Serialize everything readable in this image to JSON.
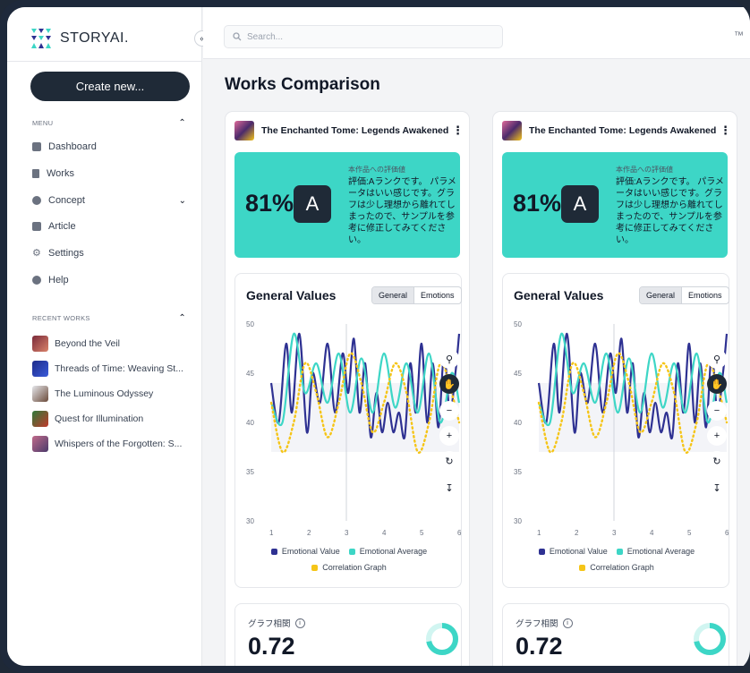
{
  "brand": {
    "name_prefix": "STORY",
    "name_suffix": "AI."
  },
  "sidebar": {
    "create_label": "Create new...",
    "menu_heading": "MENU",
    "items": [
      {
        "label": "Dashboard",
        "icon": "dashboard-icon"
      },
      {
        "label": "Works",
        "icon": "document-icon"
      },
      {
        "label": "Concept",
        "icon": "concept-icon"
      },
      {
        "label": "Article",
        "icon": "article-icon"
      },
      {
        "label": "Settings",
        "icon": "gear-icon"
      },
      {
        "label": "Help",
        "icon": "help-icon"
      }
    ],
    "recent_heading": "RECENT WORKS",
    "recent": [
      {
        "label": "Beyond the Veil"
      },
      {
        "label": "Threads of Time: Weaving St..."
      },
      {
        "label": "The Luminous Odyssey"
      },
      {
        "label": "Quest for Illumination"
      },
      {
        "label": "Whispers of the Forgotten: S..."
      }
    ]
  },
  "search": {
    "placeholder": "Search..."
  },
  "page": {
    "title": "Works Comparison"
  },
  "cards": [
    {
      "title": "The Enchanted Tome: Legends Awakened",
      "score_pct": "81%",
      "grade": "A",
      "eval_label": "本作品への評価値",
      "eval_text": "評価:Aランクです。 パラメータはいい感じです。グラフは少し理想から離れてしまったので、サンプルを参考に修正してみてください。",
      "chart_title": "General Values",
      "tab_general": "General",
      "tab_emotions": "Emotions",
      "corr_label": "グラフ相関",
      "corr_value": "0.72"
    },
    {
      "title": "The Enchanted Tome: Legends Awakened",
      "score_pct": "81%",
      "grade": "A",
      "eval_label": "本作品への評価値",
      "eval_text": "評価:Aランクです。 パラメータはいい感じです。グラフは少し理想から離れてしまったので、サンプルを参考に修正してみてください。",
      "chart_title": "General Values",
      "tab_general": "General",
      "tab_emotions": "Emotions",
      "corr_label": "グラフ相関",
      "corr_value": "0.72"
    }
  ],
  "colors": {
    "accent": "#3dd6c6",
    "dark": "#1f2a37",
    "emotional": "#2e3192",
    "average": "#3dd6c6",
    "correlation": "#f5c518"
  },
  "chart_data": {
    "type": "line",
    "xlim": [
      1,
      6
    ],
    "ylim": [
      30,
      50
    ],
    "xticks": [
      "1",
      "2",
      "3",
      "4",
      "5",
      "6"
    ],
    "yticks": [
      "50",
      "45",
      "40",
      "35",
      "30"
    ],
    "series": [
      {
        "name": "Emotional Value",
        "x": [
          1.0,
          1.2,
          1.4,
          1.55,
          1.75,
          1.95,
          2.1,
          2.3,
          2.5,
          2.7,
          2.9,
          3.05,
          3.2,
          3.35,
          3.5,
          3.65,
          3.8,
          3.95,
          4.1,
          4.25,
          4.4,
          4.55,
          4.7,
          4.85,
          5.0,
          5.15,
          5.3,
          5.45,
          5.6,
          5.75,
          5.9,
          6.0
        ],
        "y": [
          44,
          40,
          48,
          41,
          49,
          39,
          45,
          42,
          48,
          41,
          47,
          43,
          48.5,
          41,
          46,
          38.5,
          43,
          39,
          42,
          39,
          41,
          38.5,
          46,
          41,
          48,
          40,
          46,
          39.5,
          47,
          41,
          45,
          49
        ]
      },
      {
        "name": "Emotional Average",
        "x": [
          1.0,
          1.3,
          1.6,
          1.9,
          2.2,
          2.5,
          2.8,
          3.1,
          3.4,
          3.7,
          4.0,
          4.3,
          4.6,
          4.9,
          5.2,
          5.5,
          5.8,
          6.0
        ],
        "y": [
          42,
          40,
          49,
          43,
          46,
          42,
          47,
          41,
          46.5,
          41,
          47,
          41.5,
          46,
          41,
          47,
          40,
          45,
          42
        ]
      },
      {
        "name": "Correlation Graph",
        "x": [
          1.0,
          1.3,
          1.6,
          1.9,
          2.2,
          2.5,
          2.8,
          3.1,
          3.4,
          3.7,
          4.0,
          4.3,
          4.6,
          4.9,
          5.2,
          5.5,
          5.8,
          6.0
        ],
        "y": [
          42,
          37,
          40,
          46,
          43,
          38.5,
          42,
          47,
          44,
          39,
          42,
          46,
          43,
          37,
          40,
          46,
          43,
          40
        ]
      }
    ],
    "legend": "bottom",
    "grid": false
  }
}
